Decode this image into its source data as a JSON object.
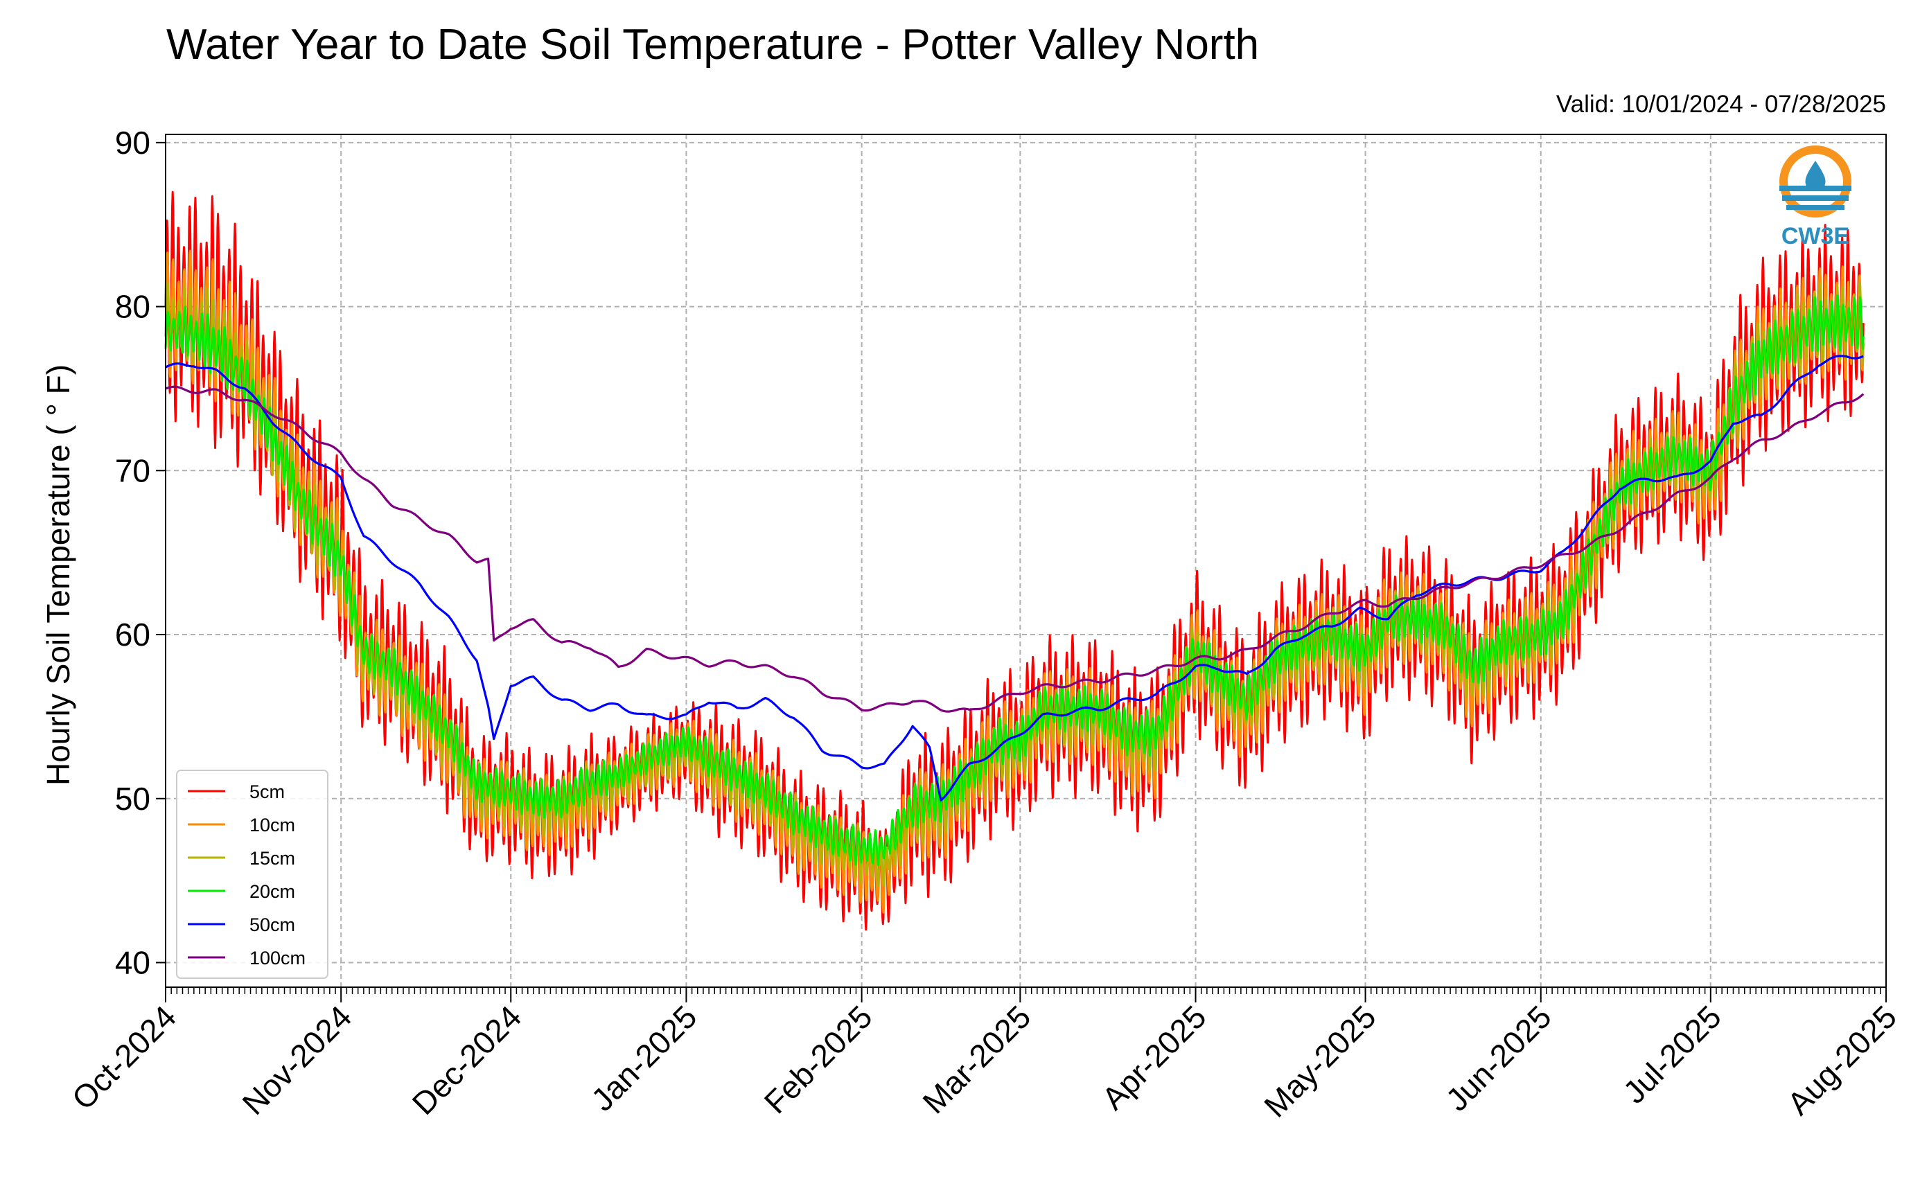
{
  "chart_data": {
    "type": "line",
    "title": "Water Year to Date Soil Temperature - Potter Valley North",
    "subtitle": "Valid: 10/01/2024 - 07/28/2025",
    "ylabel": "Hourly Soil Temperature ( ° F)",
    "xlabel": "",
    "ylim": [
      38.5,
      90.5
    ],
    "yticks": [
      40,
      50,
      60,
      70,
      80,
      90
    ],
    "x_range": [
      "2024-10-01",
      "2025-08-01"
    ],
    "x_data_end": "2025-07-28",
    "xticks": [
      {
        "date": "2024-10-01",
        "label": "Oct-2024"
      },
      {
        "date": "2024-11-01",
        "label": "Nov-2024"
      },
      {
        "date": "2024-12-01",
        "label": "Dec-2024"
      },
      {
        "date": "2025-01-01",
        "label": "Jan-2025"
      },
      {
        "date": "2025-02-01",
        "label": "Feb-2025"
      },
      {
        "date": "2025-03-01",
        "label": "Mar-2025"
      },
      {
        "date": "2025-04-01",
        "label": "Apr-2025"
      },
      {
        "date": "2025-05-01",
        "label": "May-2025"
      },
      {
        "date": "2025-06-01",
        "label": "Jun-2025"
      },
      {
        "date": "2025-07-01",
        "label": "Jul-2025"
      },
      {
        "date": "2025-08-01",
        "label": "Aug-2025"
      }
    ],
    "grid": true,
    "legend_position": "lower-left",
    "logo": "CW3E",
    "series": [
      {
        "name": "5cm",
        "color": "#ff0000",
        "x": [
          "2024-10-01",
          "2024-10-05",
          "2024-10-10",
          "2024-10-15",
          "2024-10-20",
          "2024-10-25",
          "2024-11-01",
          "2024-11-05",
          "2024-11-10",
          "2024-11-15",
          "2024-11-20",
          "2024-11-25",
          "2024-12-01",
          "2024-12-05",
          "2024-12-10",
          "2024-12-15",
          "2024-12-20",
          "2024-12-25",
          "2025-01-01",
          "2025-01-05",
          "2025-01-10",
          "2025-01-15",
          "2025-01-20",
          "2025-01-25",
          "2025-02-01",
          "2025-02-05",
          "2025-02-10",
          "2025-02-15",
          "2025-02-20",
          "2025-02-25",
          "2025-03-01",
          "2025-03-05",
          "2025-03-10",
          "2025-03-15",
          "2025-03-20",
          "2025-03-25",
          "2025-04-01",
          "2025-04-05",
          "2025-04-10",
          "2025-04-15",
          "2025-04-20",
          "2025-04-25",
          "2025-05-01",
          "2025-05-05",
          "2025-05-10",
          "2025-05-15",
          "2025-05-20",
          "2025-05-25",
          "2025-06-01",
          "2025-06-05",
          "2025-06-10",
          "2025-06-15",
          "2025-06-20",
          "2025-06-25",
          "2025-07-01",
          "2025-07-05",
          "2025-07-10",
          "2025-07-15",
          "2025-07-20",
          "2025-07-25",
          "2025-07-28"
        ],
        "y": [
          80,
          80,
          79,
          77,
          73,
          69,
          65,
          59,
          58,
          56,
          54,
          50,
          50,
          49,
          49,
          50,
          51,
          52,
          53,
          52,
          51,
          50,
          48,
          47,
          46,
          45,
          49,
          49,
          51,
          53,
          53,
          55,
          55,
          55,
          53,
          53,
          59,
          57,
          55,
          58,
          59,
          60,
          58,
          61,
          61,
          60,
          57,
          59,
          60,
          61,
          65,
          69,
          70,
          71,
          69,
          74,
          77,
          78,
          79,
          79,
          79
        ],
        "amp": [
          7,
          7,
          8,
          7,
          6,
          6,
          6,
          5,
          5,
          5,
          5,
          4,
          4,
          4,
          4,
          4,
          3,
          3,
          3,
          4,
          4,
          4,
          4,
          4,
          4,
          3,
          5,
          5,
          5,
          5,
          5,
          5,
          5,
          5,
          5,
          5,
          5,
          5,
          5,
          5,
          5,
          5,
          5,
          5,
          5,
          5,
          5,
          5,
          5,
          5,
          5,
          5,
          5,
          5,
          5,
          6,
          6,
          6,
          6,
          6,
          6
        ]
      },
      {
        "name": "10cm",
        "color": "#ff8c00",
        "x": [
          "2024-10-01",
          "2024-10-05",
          "2024-10-10",
          "2024-10-15",
          "2024-10-20",
          "2024-10-25",
          "2024-11-01",
          "2024-11-05",
          "2024-11-10",
          "2024-11-15",
          "2024-11-20",
          "2024-11-25",
          "2024-12-01",
          "2024-12-05",
          "2024-12-10",
          "2024-12-15",
          "2024-12-20",
          "2024-12-25",
          "2025-01-01",
          "2025-01-05",
          "2025-01-10",
          "2025-01-15",
          "2025-01-20",
          "2025-01-25",
          "2025-02-01",
          "2025-02-05",
          "2025-02-10",
          "2025-02-15",
          "2025-02-20",
          "2025-02-25",
          "2025-03-01",
          "2025-03-05",
          "2025-03-10",
          "2025-03-15",
          "2025-03-20",
          "2025-03-25",
          "2025-04-01",
          "2025-04-05",
          "2025-04-10",
          "2025-04-15",
          "2025-04-20",
          "2025-04-25",
          "2025-05-01",
          "2025-05-05",
          "2025-05-10",
          "2025-05-15",
          "2025-05-20",
          "2025-05-25",
          "2025-06-01",
          "2025-06-05",
          "2025-06-10",
          "2025-06-15",
          "2025-06-20",
          "2025-06-25",
          "2025-07-01",
          "2025-07-05",
          "2025-07-10",
          "2025-07-15",
          "2025-07-20",
          "2025-07-25",
          "2025-07-28"
        ],
        "y": [
          79.5,
          79.5,
          78.5,
          76.5,
          72.5,
          68.5,
          64.5,
          58.5,
          57.5,
          55.5,
          53.5,
          50,
          50,
          49,
          49,
          50,
          51,
          52,
          53,
          52,
          51,
          50,
          48,
          47,
          46,
          45,
          49,
          49,
          51,
          53,
          53,
          55,
          55,
          55,
          53,
          53,
          59,
          57,
          55,
          58,
          59,
          60,
          58,
          61,
          61,
          60,
          57,
          59,
          60,
          61,
          65,
          69,
          70,
          71,
          69,
          74,
          77,
          78,
          79,
          79,
          79
        ],
        "amp": [
          4,
          4,
          4.5,
          4,
          3.5,
          3.5,
          3.5,
          3,
          3,
          3,
          3,
          2.5,
          2.5,
          2.5,
          2.5,
          2.5,
          2,
          2,
          2,
          2.5,
          2.5,
          2.5,
          2.5,
          2.5,
          2.5,
          2,
          3,
          3,
          3,
          3,
          3,
          3,
          3,
          3,
          3,
          3,
          3,
          3,
          3,
          3,
          3,
          3,
          3,
          3,
          3,
          3,
          3,
          3,
          3,
          3,
          3,
          3,
          3,
          3,
          3,
          3.5,
          3.5,
          3.5,
          3.5,
          3.5,
          3.5
        ]
      },
      {
        "name": "15cm",
        "color": "#b5b500",
        "x": [
          "2024-10-01",
          "2024-10-05",
          "2024-10-10",
          "2024-10-15",
          "2024-10-20",
          "2024-10-25",
          "2024-11-01",
          "2024-11-05",
          "2024-11-10",
          "2024-11-15",
          "2024-11-20",
          "2024-11-25",
          "2024-12-01",
          "2024-12-05",
          "2024-12-10",
          "2024-12-15",
          "2024-12-20",
          "2024-12-25",
          "2025-01-01",
          "2025-01-05",
          "2025-01-10",
          "2025-01-15",
          "2025-01-20",
          "2025-01-25",
          "2025-02-01",
          "2025-02-05",
          "2025-02-10",
          "2025-02-15",
          "2025-02-20",
          "2025-02-25",
          "2025-03-01",
          "2025-03-05",
          "2025-03-10",
          "2025-03-15",
          "2025-03-20",
          "2025-03-25",
          "2025-04-01",
          "2025-04-05",
          "2025-04-10",
          "2025-04-15",
          "2025-04-20",
          "2025-04-25",
          "2025-05-01",
          "2025-05-05",
          "2025-05-10",
          "2025-05-15",
          "2025-05-20",
          "2025-05-25",
          "2025-06-01",
          "2025-06-05",
          "2025-06-10",
          "2025-06-15",
          "2025-06-20",
          "2025-06-25",
          "2025-07-01",
          "2025-07-05",
          "2025-07-10",
          "2025-07-15",
          "2025-07-20",
          "2025-07-25",
          "2025-07-28"
        ],
        "y": [
          79,
          79,
          78,
          76,
          72,
          68,
          64.5,
          58.5,
          57.5,
          55.5,
          53.5,
          50.5,
          50,
          49.5,
          49.5,
          50.5,
          51,
          52,
          53,
          52,
          51,
          50,
          48.5,
          47.5,
          46.5,
          46,
          49,
          49.5,
          51,
          53,
          53,
          55,
          55,
          55,
          53.5,
          53.5,
          59,
          57,
          55.5,
          58,
          59,
          60,
          58.5,
          61,
          61,
          60,
          57.5,
          59,
          60,
          61,
          65,
          69,
          70,
          71,
          69.5,
          74,
          77,
          78,
          79,
          79,
          79
        ],
        "amp": [
          2.5,
          2.5,
          3,
          2.5,
          2.5,
          2.5,
          2.5,
          2,
          2,
          2,
          2,
          1.8,
          1.8,
          1.8,
          1.8,
          1.8,
          1.5,
          1.5,
          1.5,
          1.8,
          1.8,
          1.8,
          1.8,
          1.8,
          1.8,
          1.5,
          2,
          2,
          2,
          2,
          2,
          2,
          2,
          2,
          2,
          2,
          2,
          2,
          2,
          2,
          2,
          2,
          2,
          2,
          2,
          2,
          2,
          2,
          2,
          2,
          2,
          2,
          2,
          2,
          2,
          2.5,
          2.5,
          2.5,
          2.5,
          2.5,
          2.5
        ]
      },
      {
        "name": "20cm",
        "color": "#00ee00",
        "x": [
          "2024-10-01",
          "2024-10-05",
          "2024-10-10",
          "2024-10-15",
          "2024-10-20",
          "2024-10-25",
          "2024-11-01",
          "2024-11-05",
          "2024-11-10",
          "2024-11-15",
          "2024-11-20",
          "2024-11-25",
          "2024-12-01",
          "2024-12-05",
          "2024-12-10",
          "2024-12-15",
          "2024-12-20",
          "2024-12-25",
          "2025-01-01",
          "2025-01-05",
          "2025-01-10",
          "2025-01-15",
          "2025-01-20",
          "2025-01-25",
          "2025-02-01",
          "2025-02-05",
          "2025-02-10",
          "2025-02-15",
          "2025-02-20",
          "2025-02-25",
          "2025-03-01",
          "2025-03-05",
          "2025-03-10",
          "2025-03-15",
          "2025-03-20",
          "2025-03-25",
          "2025-04-01",
          "2025-04-05",
          "2025-04-10",
          "2025-04-15",
          "2025-04-20",
          "2025-04-25",
          "2025-05-01",
          "2025-05-05",
          "2025-05-10",
          "2025-05-15",
          "2025-05-20",
          "2025-05-25",
          "2025-06-01",
          "2025-06-05",
          "2025-06-10",
          "2025-06-15",
          "2025-06-20",
          "2025-06-25",
          "2025-07-01",
          "2025-07-05",
          "2025-07-10",
          "2025-07-15",
          "2025-07-20",
          "2025-07-25",
          "2025-07-28"
        ],
        "y": [
          78.5,
          78.5,
          77.5,
          75.5,
          72,
          68,
          64.5,
          59,
          58,
          56,
          54,
          51,
          50.5,
          50,
          50,
          51,
          51.5,
          52.5,
          53.5,
          52.5,
          51.5,
          50.5,
          49,
          48,
          47,
          47,
          49.5,
          50,
          51.5,
          53.5,
          53.5,
          55.5,
          55.5,
          55.5,
          54,
          54,
          59,
          57.5,
          56,
          58.5,
          59.5,
          60,
          59,
          61,
          61,
          60.5,
          58,
          59.5,
          60,
          61,
          65,
          69,
          70,
          71,
          70,
          74,
          77,
          78,
          79,
          79,
          79
        ],
        "amp": [
          1.5,
          1.5,
          2,
          1.5,
          1.5,
          1.5,
          1.5,
          1.3,
          1.3,
          1.3,
          1.3,
          1.2,
          1.2,
          1.2,
          1.2,
          1.2,
          1,
          1,
          1,
          1.2,
          1.2,
          1.2,
          1.2,
          1.2,
          1.2,
          1,
          1.4,
          1.4,
          1.4,
          1.4,
          1.4,
          1.4,
          1.4,
          1.4,
          1.4,
          1.4,
          1.4,
          1.4,
          1.4,
          1.4,
          1.4,
          1.4,
          1.4,
          1.4,
          1.4,
          1.4,
          1.4,
          1.4,
          1.4,
          1.4,
          1.4,
          1.4,
          1.4,
          1.4,
          1.4,
          1.7,
          1.7,
          1.7,
          1.7,
          1.7,
          1.7
        ]
      },
      {
        "name": "50cm",
        "color": "#0000ff",
        "x": [
          "2024-10-01",
          "2024-10-06",
          "2024-10-10",
          "2024-10-15",
          "2024-10-20",
          "2024-10-25",
          "2024-11-01",
          "2024-11-05",
          "2024-11-10",
          "2024-11-15",
          "2024-11-20",
          "2024-11-25",
          "2024-11-27",
          "2024-11-28",
          "2024-12-01",
          "2024-12-05",
          "2024-12-10",
          "2024-12-15",
          "2024-12-20",
          "2024-12-25",
          "2025-01-01",
          "2025-01-05",
          "2025-01-10",
          "2025-01-15",
          "2025-01-20",
          "2025-01-25",
          "2025-02-01",
          "2025-02-05",
          "2025-02-10",
          "2025-02-13",
          "2025-02-15",
          "2025-02-20",
          "2025-02-25",
          "2025-03-01",
          "2025-03-05",
          "2025-03-10",
          "2025-03-15",
          "2025-03-20",
          "2025-03-25",
          "2025-04-01",
          "2025-04-05",
          "2025-04-10",
          "2025-04-15",
          "2025-04-20",
          "2025-04-25",
          "2025-04-30",
          "2025-05-05",
          "2025-05-10",
          "2025-05-15",
          "2025-05-20",
          "2025-05-25",
          "2025-06-01",
          "2025-06-05",
          "2025-06-10",
          "2025-06-15",
          "2025-06-20",
          "2025-06-25",
          "2025-07-01",
          "2025-07-05",
          "2025-07-10",
          "2025-07-15",
          "2025-07-20",
          "2025-07-25",
          "2025-07-28"
        ],
        "y": [
          76.3,
          76.5,
          76,
          75,
          73,
          71.3,
          69.5,
          66,
          64.5,
          63,
          61,
          58.5,
          55.5,
          53.5,
          57,
          57.3,
          56,
          55.5,
          55.7,
          55,
          55,
          56,
          55.5,
          56,
          55,
          53,
          52,
          52,
          54.5,
          53,
          50,
          52,
          53,
          54,
          55,
          55.3,
          55.5,
          56,
          56.3,
          58,
          58,
          57.5,
          59,
          60,
          60.5,
          61.5,
          61,
          62.5,
          63,
          63.3,
          63.5,
          64,
          65,
          67,
          69,
          69.5,
          69.5,
          70.5,
          73,
          73.3,
          75,
          76.5,
          77,
          77
        ]
      },
      {
        "name": "100cm",
        "color": "#7f007f",
        "x": [
          "2024-10-01",
          "2024-10-10",
          "2024-10-15",
          "2024-10-20",
          "2024-10-25",
          "2024-11-01",
          "2024-11-05",
          "2024-11-10",
          "2024-11-15",
          "2024-11-20",
          "2024-11-25",
          "2024-11-27",
          "2024-11-28",
          "2024-12-01",
          "2024-12-05",
          "2024-12-10",
          "2024-12-15",
          "2024-12-20",
          "2024-12-25",
          "2025-01-01",
          "2025-01-05",
          "2025-01-10",
          "2025-01-15",
          "2025-01-20",
          "2025-01-25",
          "2025-02-01",
          "2025-02-05",
          "2025-02-10",
          "2025-02-15",
          "2025-02-20",
          "2025-02-25",
          "2025-03-01",
          "2025-03-05",
          "2025-03-10",
          "2025-03-15",
          "2025-03-20",
          "2025-03-25",
          "2025-04-01",
          "2025-04-05",
          "2025-04-10",
          "2025-04-15",
          "2025-04-20",
          "2025-04-25",
          "2025-05-01",
          "2025-05-05",
          "2025-05-10",
          "2025-05-15",
          "2025-05-20",
          "2025-05-25",
          "2025-06-01",
          "2025-06-05",
          "2025-06-10",
          "2025-06-15",
          "2025-06-20",
          "2025-06-25",
          "2025-07-01",
          "2025-07-05",
          "2025-07-10",
          "2025-07-15",
          "2025-07-20",
          "2025-07-25",
          "2025-07-28"
        ],
        "y": [
          75,
          74.8,
          74.3,
          73.5,
          72.5,
          71,
          69.5,
          68,
          67,
          66,
          64.5,
          64.5,
          59.5,
          60.5,
          60.8,
          59.5,
          59.3,
          58,
          59,
          58.5,
          58.2,
          58.3,
          58,
          57.5,
          56.5,
          55.5,
          55.6,
          56,
          55.5,
          55.3,
          56,
          56.5,
          56.8,
          57,
          57.2,
          57.5,
          57.8,
          58.5,
          58.6,
          59,
          59.8,
          60.5,
          61.3,
          62,
          61.8,
          62.3,
          62.8,
          63.2,
          63.6,
          64.3,
          64.8,
          65.5,
          66.5,
          67.5,
          68.5,
          69.5,
          70.8,
          71.8,
          72.5,
          73.5,
          74.2,
          74.7
        ]
      }
    ]
  }
}
